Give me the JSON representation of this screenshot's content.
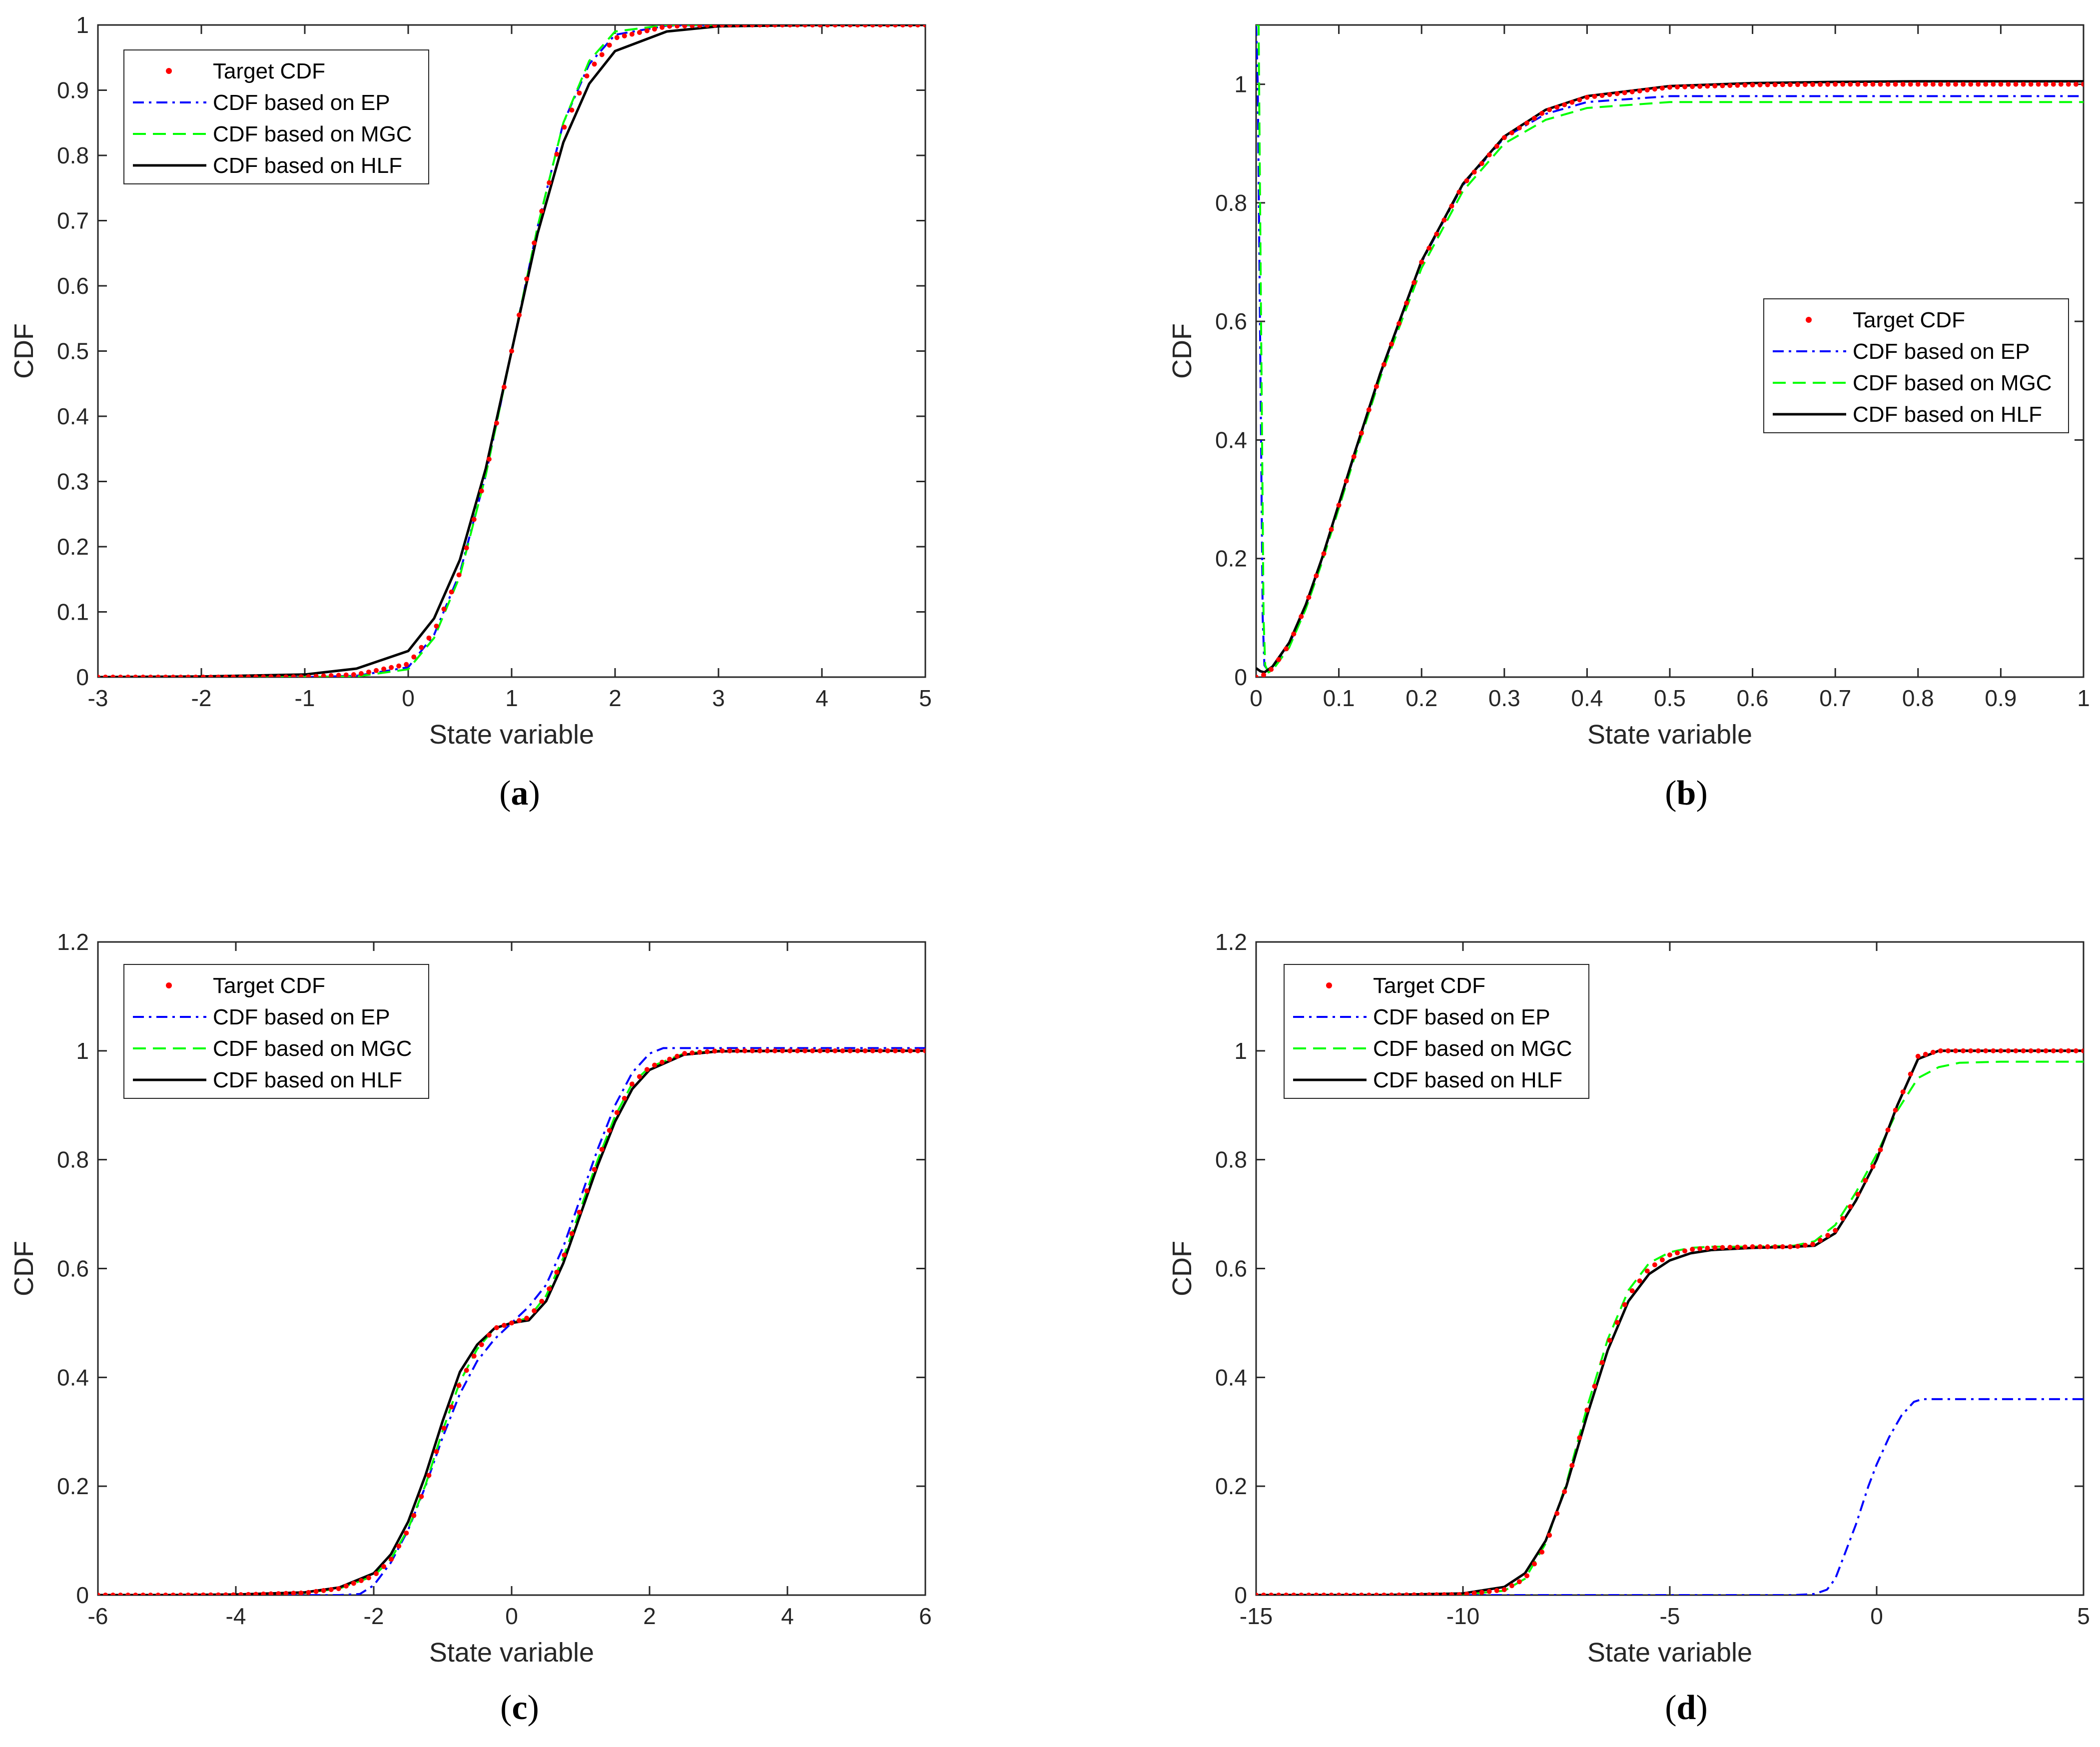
{
  "figure": {
    "background": "#ffffff"
  },
  "styles": {
    "target": {
      "label": "Target CDF",
      "color": "#ff0000",
      "kind": "dots"
    },
    "ep": {
      "label": "CDF based on EP",
      "color": "#0000ff",
      "kind": "dashdot"
    },
    "mgc": {
      "label": "CDF based on MGC",
      "color": "#00ff00",
      "kind": "dashed"
    },
    "hlf": {
      "label": "CDF based on HLF",
      "color": "#000000",
      "kind": "solid"
    }
  },
  "chart_data": [
    {
      "id": "a",
      "type": "line",
      "caption": "a",
      "xlabel": "State variable",
      "ylabel": "CDF",
      "xlim": [
        -3,
        5
      ],
      "ylim": [
        0,
        1
      ],
      "xticks": [
        -3,
        -2,
        -1,
        0,
        1,
        2,
        3,
        4,
        5
      ],
      "xtick_labels": [
        "-3",
        "-2",
        "-1",
        "0",
        "1",
        "2",
        "3",
        "4",
        "5"
      ],
      "yticks": [
        0,
        0.1,
        0.2,
        0.3,
        0.4,
        0.5,
        0.6,
        0.7,
        0.8,
        0.9,
        1
      ],
      "ytick_labels": [
        "0",
        "0.1",
        "0.2",
        "0.3",
        "0.4",
        "0.5",
        "0.6",
        "0.7",
        "0.8",
        "0.9",
        "1"
      ],
      "legend_position": "top-left",
      "legend": [
        "Target CDF",
        "CDF based on EP",
        "CDF based on MGC",
        "CDF based on HLF"
      ],
      "series": [
        {
          "name": "Target CDF",
          "style": "target",
          "x": [
            -3,
            -2,
            -1,
            -0.5,
            0,
            0.25,
            0.5,
            0.75,
            1,
            1.25,
            1.5,
            1.75,
            2,
            2.5,
            3,
            4,
            5
          ],
          "y": [
            0,
            0,
            0.0005,
            0.004,
            0.02,
            0.07,
            0.16,
            0.31,
            0.5,
            0.69,
            0.84,
            0.93,
            0.98,
            0.998,
            1,
            1,
            1
          ]
        },
        {
          "name": "CDF based on EP",
          "style": "ep",
          "x": [
            -3,
            -2,
            -1,
            -0.5,
            0,
            0.25,
            0.5,
            0.75,
            1,
            1.25,
            1.5,
            1.75,
            2,
            2.5,
            3,
            4,
            5
          ],
          "y": [
            0,
            0,
            0,
            0.002,
            0.015,
            0.065,
            0.16,
            0.31,
            0.5,
            0.69,
            0.85,
            0.94,
            0.985,
            0.999,
            1,
            1,
            1
          ]
        },
        {
          "name": "CDF based on MGC",
          "style": "mgc",
          "x": [
            -3,
            -2,
            -1,
            -0.5,
            0,
            0.25,
            0.5,
            0.75,
            1,
            1.25,
            1.5,
            1.75,
            2,
            2.5,
            3,
            4,
            5
          ],
          "y": [
            0,
            0,
            0,
            0.001,
            0.012,
            0.06,
            0.155,
            0.31,
            0.5,
            0.69,
            0.85,
            0.945,
            0.99,
            1,
            1,
            1,
            1
          ]
        },
        {
          "name": "CDF based on HLF",
          "style": "hlf",
          "x": [
            -3,
            -2,
            -1,
            -0.5,
            0,
            0.25,
            0.5,
            0.75,
            1,
            1.25,
            1.5,
            1.75,
            2,
            2.5,
            3,
            4,
            5
          ],
          "y": [
            0,
            0.001,
            0.004,
            0.013,
            0.04,
            0.09,
            0.18,
            0.32,
            0.5,
            0.68,
            0.82,
            0.91,
            0.96,
            0.99,
            0.998,
            1,
            1
          ]
        }
      ]
    },
    {
      "id": "b",
      "type": "line",
      "caption": "b",
      "xlabel": "State variable",
      "ylabel": "CDF",
      "xlim": [
        0,
        1
      ],
      "ylim": [
        0,
        1.1
      ],
      "xticks": [
        0,
        0.1,
        0.2,
        0.3,
        0.4,
        0.5,
        0.6,
        0.7,
        0.8,
        0.9,
        1
      ],
      "xtick_labels": [
        "0",
        "0.1",
        "0.2",
        "0.3",
        "0.4",
        "0.5",
        "0.6",
        "0.7",
        "0.8",
        "0.9",
        "1"
      ],
      "yticks": [
        0,
        0.2,
        0.4,
        0.6,
        0.8,
        1
      ],
      "ytick_labels": [
        "0",
        "0.2",
        "0.4",
        "0.6",
        "0.8",
        "1"
      ],
      "legend_position": "right",
      "legend": [
        "Target CDF",
        "CDF based on EP",
        "CDF based on MGC",
        "CDF based on HLF"
      ],
      "series": [
        {
          "name": "Target CDF",
          "style": "target",
          "x": [
            0,
            0.01,
            0.02,
            0.04,
            0.06,
            0.08,
            0.1,
            0.12,
            0.15,
            0.2,
            0.25,
            0.3,
            0.35,
            0.4,
            0.5,
            0.6,
            0.7,
            0.8,
            0.9,
            1
          ],
          "y": [
            0,
            0.004,
            0.015,
            0.055,
            0.12,
            0.2,
            0.29,
            0.38,
            0.51,
            0.7,
            0.83,
            0.91,
            0.955,
            0.978,
            0.995,
            0.999,
            1,
            1,
            1,
            1
          ]
        },
        {
          "name": "CDF based on EP",
          "style": "ep",
          "x": [
            0,
            0.002,
            0.005,
            0.008,
            0.01,
            0.015,
            0.02,
            0.04,
            0.06,
            0.08,
            0.1,
            0.12,
            0.15,
            0.2,
            0.25,
            0.3,
            0.35,
            0.4,
            0.5,
            0.6,
            0.7,
            0.8,
            0.9,
            1
          ],
          "y": [
            1.1,
            1.0,
            0.55,
            0.1,
            0.02,
            0.01,
            0.015,
            0.055,
            0.12,
            0.2,
            0.29,
            0.38,
            0.51,
            0.7,
            0.83,
            0.91,
            0.95,
            0.97,
            0.98,
            0.98,
            0.98,
            0.98,
            0.98,
            0.98
          ]
        },
        {
          "name": "CDF based on MGC",
          "style": "mgc",
          "x": [
            0,
            0.003,
            0.006,
            0.009,
            0.011,
            0.015,
            0.02,
            0.04,
            0.06,
            0.08,
            0.1,
            0.12,
            0.15,
            0.2,
            0.25,
            0.3,
            0.35,
            0.4,
            0.5,
            0.6,
            0.7,
            0.8,
            0.9,
            1
          ],
          "y": [
            1.1,
            1.1,
            0.6,
            0.1,
            0.02,
            0.008,
            0.012,
            0.05,
            0.115,
            0.195,
            0.285,
            0.375,
            0.505,
            0.69,
            0.82,
            0.9,
            0.94,
            0.96,
            0.97,
            0.97,
            0.97,
            0.97,
            0.97,
            0.97
          ]
        },
        {
          "name": "CDF based on HLF",
          "style": "hlf",
          "x": [
            0,
            0.005,
            0.01,
            0.02,
            0.04,
            0.06,
            0.08,
            0.1,
            0.12,
            0.15,
            0.2,
            0.25,
            0.3,
            0.35,
            0.4,
            0.5,
            0.6,
            0.7,
            0.8,
            0.9,
            1
          ],
          "y": [
            0.015,
            0.01,
            0.008,
            0.018,
            0.058,
            0.122,
            0.202,
            0.292,
            0.382,
            0.512,
            0.702,
            0.832,
            0.912,
            0.957,
            0.98,
            0.997,
            1.002,
            1.004,
            1.005,
            1.005,
            1.005
          ]
        }
      ]
    },
    {
      "id": "c",
      "type": "line",
      "caption": "c",
      "xlabel": "State variable",
      "ylabel": "CDF",
      "xlim": [
        -6,
        6
      ],
      "ylim": [
        0,
        1.2
      ],
      "xticks": [
        -6,
        -4,
        -2,
        0,
        2,
        4,
        6
      ],
      "xtick_labels": [
        "-6",
        "-4",
        "-2",
        "0",
        "2",
        "4",
        "6"
      ],
      "yticks": [
        0,
        0.2,
        0.4,
        0.6,
        0.8,
        1,
        1.2
      ],
      "ytick_labels": [
        "0",
        "0.2",
        "0.4",
        "0.6",
        "0.8",
        "1",
        "1.2"
      ],
      "legend_position": "top-left",
      "legend": [
        "Target CDF",
        "CDF based on EP",
        "CDF based on MGC",
        "CDF based on HLF"
      ],
      "series": [
        {
          "name": "Target CDF",
          "style": "target",
          "x": [
            -6,
            -5,
            -4,
            -3,
            -2.5,
            -2,
            -1.75,
            -1.5,
            -1.25,
            -1,
            -0.75,
            -0.5,
            -0.25,
            0,
            0.25,
            0.5,
            0.75,
            1,
            1.25,
            1.5,
            1.75,
            2,
            2.5,
            3,
            4,
            5,
            6
          ],
          "y": [
            0,
            0,
            0.0005,
            0.004,
            0.012,
            0.035,
            0.065,
            0.12,
            0.2,
            0.3,
            0.39,
            0.45,
            0.49,
            0.5,
            0.51,
            0.55,
            0.62,
            0.71,
            0.8,
            0.88,
            0.94,
            0.97,
            0.995,
            1,
            1,
            1,
            1
          ]
        },
        {
          "name": "CDF based on EP",
          "style": "ep",
          "x": [
            -6,
            -3,
            -2.5,
            -2.2,
            -2,
            -1.75,
            -1.5,
            -1.25,
            -1,
            -0.75,
            -0.5,
            -0.25,
            0,
            0.25,
            0.5,
            0.75,
            1,
            1.25,
            1.5,
            1.75,
            2,
            2.2,
            2.5,
            3,
            4,
            5,
            6
          ],
          "y": [
            0,
            0,
            0,
            0.002,
            0.018,
            0.06,
            0.12,
            0.2,
            0.29,
            0.37,
            0.43,
            0.47,
            0.5,
            0.53,
            0.57,
            0.64,
            0.73,
            0.82,
            0.9,
            0.96,
            0.995,
            1.005,
            1.005,
            1.005,
            1.005,
            1.005,
            1.005
          ]
        },
        {
          "name": "CDF based on MGC",
          "style": "mgc",
          "x": [
            -6,
            -5,
            -4,
            -3,
            -2.5,
            -2,
            -1.75,
            -1.5,
            -1.25,
            -1,
            -0.75,
            -0.5,
            -0.25,
            0,
            0.25,
            0.5,
            0.75,
            1,
            1.25,
            1.5,
            1.75,
            2,
            2.5,
            3,
            4,
            5,
            6
          ],
          "y": [
            0,
            0,
            0.0005,
            0.004,
            0.012,
            0.035,
            0.066,
            0.122,
            0.202,
            0.302,
            0.392,
            0.452,
            0.49,
            0.5,
            0.51,
            0.55,
            0.62,
            0.71,
            0.8,
            0.88,
            0.94,
            0.97,
            0.995,
            1.0,
            1.0,
            1.0,
            1.0
          ]
        },
        {
          "name": "CDF based on HLF",
          "style": "hlf",
          "x": [
            -6,
            -5,
            -4,
            -3,
            -2.5,
            -2,
            -1.75,
            -1.5,
            -1.25,
            -1,
            -0.75,
            -0.5,
            -0.25,
            0,
            0.25,
            0.5,
            0.75,
            1,
            1.25,
            1.5,
            1.75,
            2,
            2.5,
            3,
            4,
            5,
            6
          ],
          "y": [
            0,
            0,
            0.001,
            0.005,
            0.014,
            0.04,
            0.075,
            0.135,
            0.22,
            0.32,
            0.41,
            0.46,
            0.49,
            0.5,
            0.505,
            0.54,
            0.61,
            0.7,
            0.79,
            0.87,
            0.93,
            0.965,
            0.993,
            0.999,
            1,
            1,
            1
          ]
        }
      ]
    },
    {
      "id": "d",
      "type": "line",
      "caption": "d",
      "xlabel": "State variable",
      "ylabel": "CDF",
      "xlim": [
        -15,
        5
      ],
      "ylim": [
        0,
        1.2
      ],
      "xticks": [
        -15,
        -10,
        -5,
        0,
        5
      ],
      "xtick_labels": [
        "-15",
        "-10",
        "-5",
        "0",
        "5"
      ],
      "yticks": [
        0,
        0.2,
        0.4,
        0.6,
        0.8,
        1,
        1.2
      ],
      "ytick_labels": [
        "0",
        "0.2",
        "0.4",
        "0.6",
        "0.8",
        "1",
        "1.2"
      ],
      "legend_position": "top-left",
      "legend": [
        "Target CDF",
        "CDF based on EP",
        "CDF based on MGC",
        "CDF based on HLF"
      ],
      "series": [
        {
          "name": "Target CDF",
          "style": "target",
          "x": [
            -15,
            -12,
            -10,
            -9,
            -8.5,
            -8,
            -7.5,
            -7,
            -6.5,
            -6,
            -5.5,
            -5,
            -4.5,
            -4,
            -3,
            -2,
            -1.5,
            -1,
            -0.5,
            0,
            0.5,
            1,
            1.5,
            2,
            3,
            4,
            5
          ],
          "y": [
            0,
            0,
            0.001,
            0.01,
            0.03,
            0.09,
            0.2,
            0.34,
            0.46,
            0.55,
            0.6,
            0.625,
            0.635,
            0.638,
            0.64,
            0.64,
            0.645,
            0.67,
            0.73,
            0.8,
            0.9,
            0.99,
            1.0,
            1.0,
            1.0,
            1.0,
            1.0
          ]
        },
        {
          "name": "CDF based on EP",
          "style": "ep",
          "x": [
            -15,
            -5,
            -2,
            -1.5,
            -1.2,
            -1,
            -0.8,
            -0.5,
            -0.2,
            0,
            0.3,
            0.6,
            0.9,
            1.1,
            1.3,
            2,
            3,
            4,
            5
          ],
          "y": [
            0,
            0,
            0,
            0.002,
            0.01,
            0.03,
            0.07,
            0.13,
            0.2,
            0.24,
            0.29,
            0.33,
            0.355,
            0.36,
            0.36,
            0.36,
            0.36,
            0.36,
            0.36
          ]
        },
        {
          "name": "CDF based on MGC",
          "style": "mgc",
          "x": [
            -15,
            -12,
            -10,
            -9,
            -8.5,
            -8,
            -7.5,
            -7,
            -6.5,
            -6,
            -5.5,
            -5,
            -4.5,
            -4,
            -3,
            -2,
            -1.5,
            -1,
            -0.5,
            0,
            0.5,
            1,
            1.5,
            2,
            3,
            4,
            5
          ],
          "y": [
            0,
            0,
            0.001,
            0.008,
            0.03,
            0.095,
            0.205,
            0.345,
            0.47,
            0.56,
            0.61,
            0.63,
            0.638,
            0.64,
            0.64,
            0.642,
            0.65,
            0.68,
            0.74,
            0.81,
            0.89,
            0.95,
            0.97,
            0.978,
            0.98,
            0.98,
            0.98
          ]
        },
        {
          "name": "CDF based on HLF",
          "style": "hlf",
          "x": [
            -15,
            -12,
            -10,
            -9,
            -8.5,
            -8,
            -7.5,
            -7,
            -6.5,
            -6,
            -5.5,
            -5,
            -4.5,
            -4,
            -3,
            -2,
            -1.5,
            -1,
            -0.5,
            0,
            0.5,
            1,
            1.5,
            2,
            3,
            4,
            5
          ],
          "y": [
            0,
            0,
            0.003,
            0.015,
            0.04,
            0.1,
            0.2,
            0.33,
            0.45,
            0.54,
            0.59,
            0.615,
            0.628,
            0.634,
            0.638,
            0.64,
            0.642,
            0.665,
            0.725,
            0.8,
            0.9,
            0.985,
            1.0,
            1.0,
            1.0,
            1.0,
            1.0
          ]
        }
      ]
    }
  ]
}
